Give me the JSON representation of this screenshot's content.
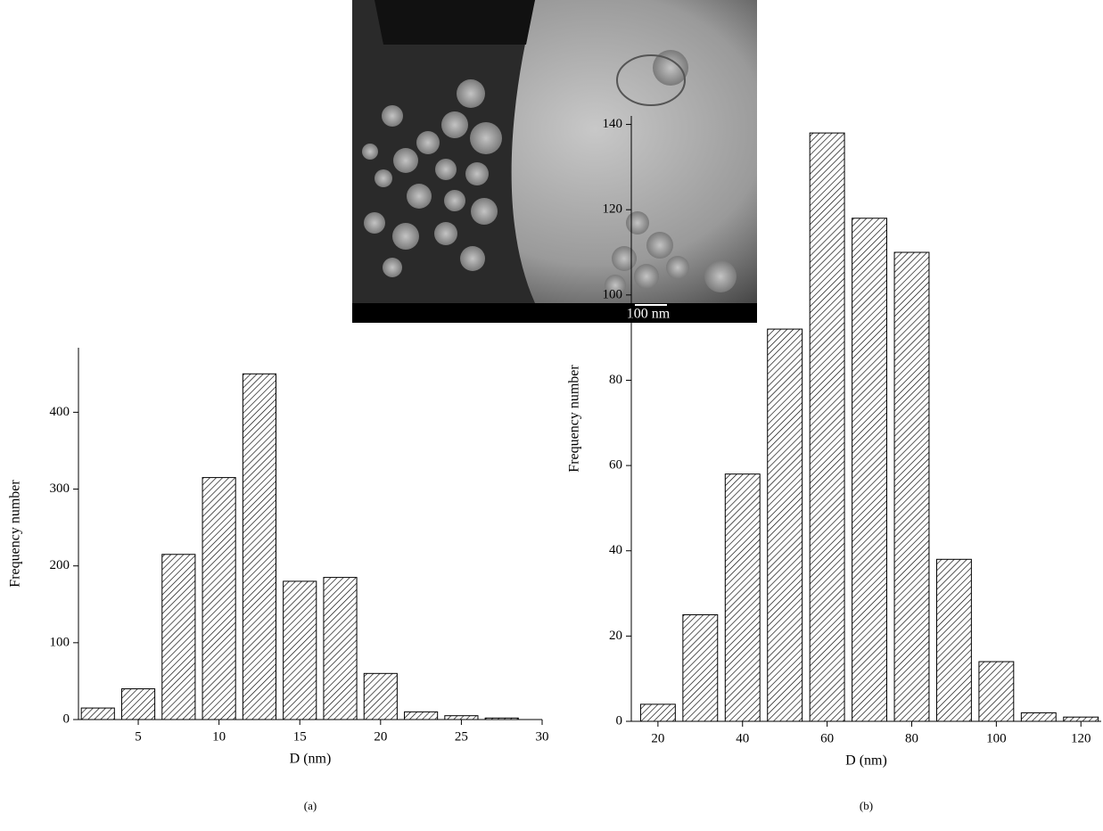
{
  "image": {
    "scale_label": "100 nm"
  },
  "chart_data": [
    {
      "type": "bar",
      "caption": "(a)",
      "xlabel": "D (nm)",
      "ylabel": "Frequency number",
      "x": [
        2.5,
        5,
        7.5,
        10,
        12.5,
        15,
        17.5,
        20,
        22.5,
        25,
        27.5
      ],
      "values": [
        15,
        40,
        215,
        315,
        450,
        180,
        185,
        60,
        10,
        5,
        2
      ],
      "color": "#000000",
      "xlim": [
        1.3,
        30
      ],
      "xticks": [
        5,
        10,
        15,
        20,
        25,
        30
      ],
      "ylim": [
        0,
        484
      ],
      "yticks": [
        0,
        100,
        200,
        300,
        400
      ]
    },
    {
      "type": "bar",
      "caption": "(b)",
      "xlabel": "D (nm)",
      "ylabel": "Frequency number",
      "x": [
        20,
        30,
        40,
        50,
        60,
        70,
        80,
        90,
        100,
        110,
        120
      ],
      "values": [
        4,
        25,
        58,
        92,
        138,
        118,
        110,
        38,
        14,
        2,
        1
      ],
      "color": "#000000",
      "xlim": [
        13.7,
        124.8
      ],
      "xticks": [
        20,
        40,
        60,
        80,
        100,
        120
      ],
      "ylim": [
        0,
        142
      ],
      "yticks": [
        0,
        20,
        40,
        60,
        80,
        100,
        120,
        140
      ]
    }
  ]
}
